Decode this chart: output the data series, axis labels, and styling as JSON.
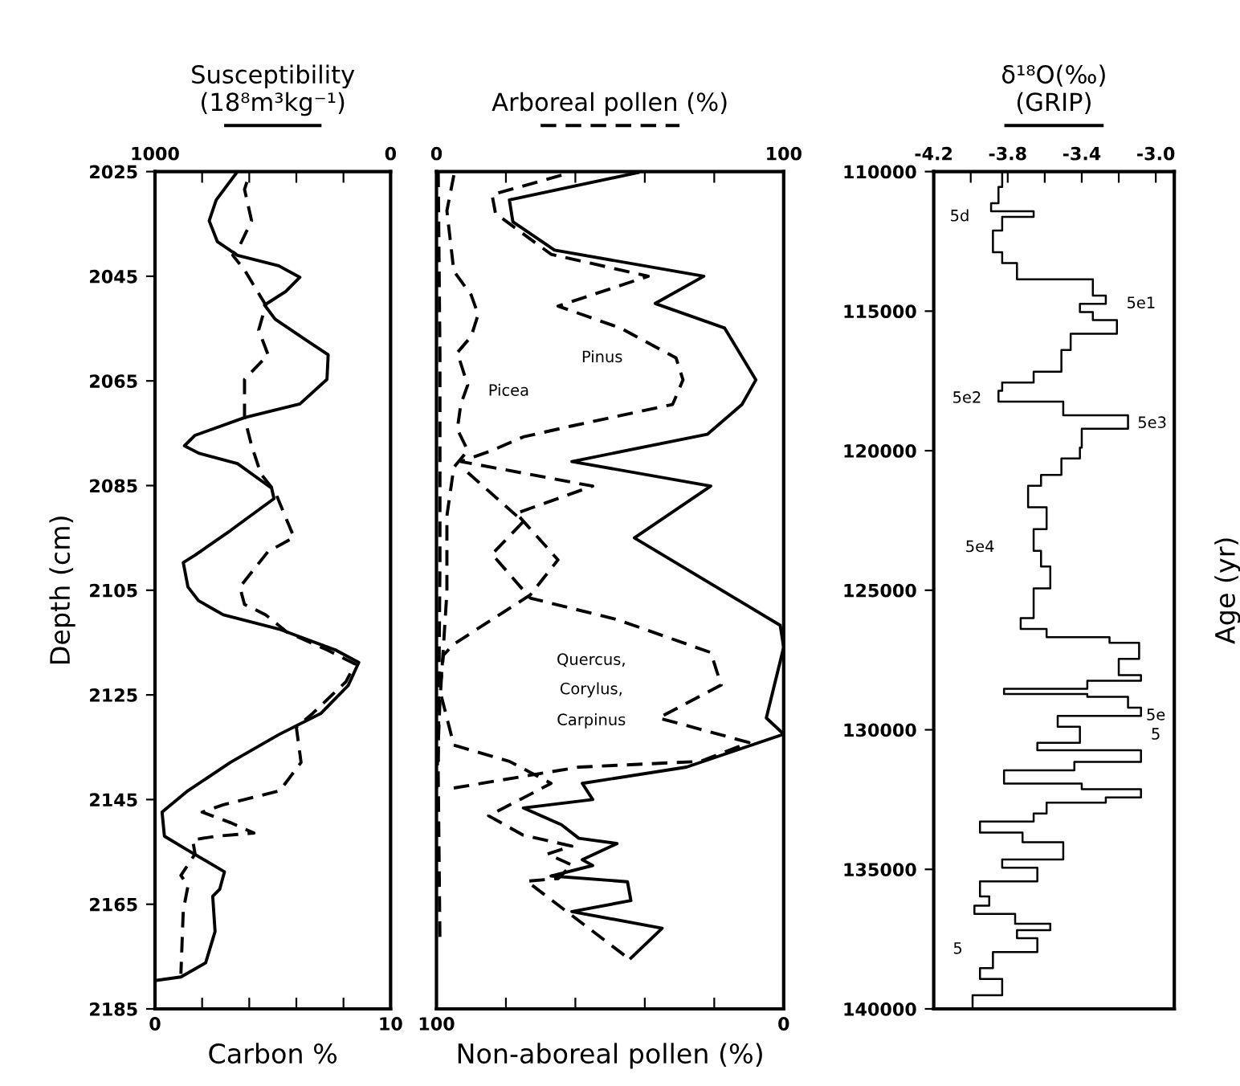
{
  "chart_data": [
    {
      "type": "line",
      "orientation": "horizontal",
      "xlabel": "Carbon %",
      "x2label": "Susceptibility\n(18⁸m³kg⁻¹)",
      "ylabel": "Depth (cm)",
      "xlim": [
        0,
        10
      ],
      "xticks": [
        0,
        {
          "value": 2,
          "label": null
        },
        {
          "value": 4,
          "label": null
        },
        {
          "value": 6,
          "label": null
        },
        {
          "value": 8,
          "label": null
        },
        10
      ],
      "x2lim": [
        1000,
        0
      ],
      "x2ticks": [
        1000,
        {
          "value": 800,
          "label": null
        },
        {
          "value": 600,
          "label": null
        },
        {
          "value": 400,
          "label": null
        },
        {
          "value": 200,
          "label": null
        },
        0
      ],
      "ylim": [
        2185,
        2025
      ],
      "yticks": [
        2025,
        2045,
        2065,
        2085,
        2105,
        2125,
        2145,
        2165,
        2185
      ],
      "series": [
        {
          "color": "#000000",
          "line_style": "solid",
          "axis": "x2",
          "x": [
            2025,
            2030.4,
            2034.4,
            2038.4,
            2041,
            2043,
            2045.2,
            2047.9,
            2050.5,
            2053.2,
            2057.3,
            2060,
            2064.7,
            2069.4,
            2072,
            2075.4,
            2077.4,
            2078.8,
            2080.8,
            2085.5,
            2087.5,
            2093.6,
            2098.3,
            2099.7,
            2104.4,
            2107,
            2109.7,
            2112.4,
            2116.4,
            2118.8,
            2123.2,
            2128.5,
            2132.6,
            2137.9,
            2143.3,
            2147.4,
            2152,
            2154.7,
            2158.8,
            2162.1,
            2163.5,
            2170.2,
            2176.2,
            2178.9,
            2179.6
          ],
          "values": [
            650,
            740,
            770,
            735,
            650,
            475,
            385,
            445,
            535,
            490,
            355,
            265,
            270,
            385,
            620,
            830,
            875,
            815,
            650,
            505,
            495,
            680,
            830,
            880,
            860,
            815,
            710,
            475,
            235,
            135,
            180,
            295,
            475,
            680,
            860,
            970,
            960,
            860,
            705,
            725,
            755,
            745,
            785,
            890,
            1000
          ]
        },
        {
          "color": "#000000",
          "line_style": "dashed",
          "x": [
            2027,
            2028.4,
            2034.4,
            2039.1,
            2041,
            2043.8,
            2050.5,
            2055.3,
            2060,
            2064.7,
            2072,
            2077.4,
            2082.8,
            2086.2,
            2089.5,
            2094.9,
            2097.6,
            2104.4,
            2107.7,
            2109.7,
            2113,
            2116.4,
            2119.1,
            2122.5,
            2128.5,
            2131.2,
            2137.9,
            2143.3,
            2146,
            2147.4,
            2149.4,
            2151.4,
            2152,
            2152.7,
            2155.4,
            2159.5,
            2161.5,
            2166.2,
            2178.3
          ],
          "values": [
            3.9,
            3.8,
            4.1,
            3.6,
            3.3,
            3.8,
            4.7,
            4.4,
            4.8,
            3.8,
            3.8,
            4.1,
            4.5,
            5.1,
            5.4,
            5.9,
            4.8,
            3.6,
            3.8,
            4.7,
            5.6,
            7.3,
            8.5,
            8.1,
            6.7,
            6.0,
            6.2,
            5.3,
            2.9,
            2.0,
            3.2,
            4.2,
            2.6,
            1.6,
            1.7,
            1.1,
            1.4,
            1.2,
            1.1
          ]
        }
      ]
    },
    {
      "type": "line",
      "orientation": "horizontal",
      "xlabel": "Non-aboreal pollen (%)",
      "x2label": "Arboreal pollen (%)",
      "tick_labels": "x",
      "xlim": [
        100,
        0
      ],
      "xticks": [
        100,
        {
          "value": 80,
          "label": null
        },
        {
          "value": 60,
          "label": null
        },
        {
          "value": 40,
          "label": null
        },
        {
          "value": 20,
          "label": null
        },
        0
      ],
      "x2lim": [
        0,
        100
      ],
      "x2ticks": [
        0,
        {
          "value": 20,
          "label": null
        },
        {
          "value": 40,
          "label": null
        },
        {
          "value": 60,
          "label": null
        },
        {
          "value": 80,
          "label": null
        },
        100
      ],
      "ylim": [
        2185,
        2025
      ],
      "annotations": [
        "Pinus",
        "Picea",
        "Quercus,",
        "Corylus,",
        "Carpinus"
      ],
      "series": [
        {
          "color": "#000000",
          "line_style": "solid",
          "x": [
            2025.2,
            2030.4,
            2034.6,
            2040.0,
            2045.0,
            2050.2,
            2054.9,
            2064.8,
            2069.5,
            2075.2,
            2080.4,
            2085.1,
            2095.0,
            2111.7,
            2115.9,
            2129.4,
            2132.5,
            2138.8,
            2141.9,
            2145.0,
            2146.6,
            2149.8,
            2152.4,
            2153.4,
            2156.5,
            2157.6,
            2159.6,
            2160.7,
            2164.3,
            2166.4,
            2169.6,
            2175.3
          ],
          "values": [
            42,
            79,
            78,
            66,
            23,
            37,
            17,
            8,
            12,
            22,
            61,
            21,
            43,
            1,
            0,
            5,
            0,
            28,
            58,
            55,
            75,
            64,
            59,
            48,
            58,
            55,
            67,
            45,
            44,
            61,
            35,
            44
          ]
        },
        {
          "color": "#000000",
          "line_style": "dashed",
          "axis": "x2",
          "x": [
            2025.7,
            2029.4,
            2033.0,
            2040.8,
            2045.0,
            2050.7,
            2054.9,
            2060.6,
            2064.8,
            2069.5,
            2073.6,
            2075.7,
            2078.3,
            2080.4,
            2085.1,
            2090.3,
            2099.2,
            2105.9,
            2115.3,
            2117.4,
            2124.2,
            2134.6
          ],
          "values": [
            36,
            16,
            17,
            33,
            61,
            35,
            53,
            69,
            71,
            68,
            39,
            25,
            16,
            7,
            45,
            23,
            35,
            27,
            5,
            2,
            1,
            5
          ]
        },
        {
          "color": "#000000",
          "line_style": "dashed",
          "axis": "x2",
          "x": [
            2082.5,
            2091.9,
            2098.1,
            2106.5,
            2110.6,
            2116.9,
            2123.1,
            2129.4,
            2134.1,
            2137.7,
            2138.8,
            2142.9
          ],
          "values": [
            9,
            25,
            16,
            27,
            52,
            79,
            82,
            64,
            90,
            76,
            41,
            4
          ]
        },
        {
          "color": "#000000",
          "line_style": "dashed",
          "axis": "x2",
          "x": [
            2134.6,
            2137.7,
            2141.9,
            2144.0,
            2148.1,
            2151.8,
            2153.9,
            2155.4,
            2157.5,
            2160.1,
            2160.6,
            2175.2
          ],
          "values": [
            5,
            21,
            33,
            27,
            15,
            25,
            39,
            32,
            39,
            35,
            26,
            55
          ]
        },
        {
          "color": "#000000",
          "line_style": "dashed",
          "axis": "x2",
          "x": [
            2025.7,
            2032.5,
            2044.0,
            2048.6,
            2052.3,
            2056.5,
            2059.6,
            2065.8,
            2069.5,
            2074.2,
            2078.3,
            2081.5,
            2090.8,
            2105.4,
            2126.2,
            2142.9
          ],
          "values": [
            5,
            3,
            5,
            10,
            12,
            10,
            6,
            9,
            7,
            6,
            9,
            5,
            3,
            3,
            1,
            0
          ]
        },
        {
          "color": "#000000",
          "line_style": "dashed",
          "axis": "x2",
          "x": [
            2025,
            2060,
            2100,
            2140,
            2172
          ],
          "values": [
            0.5,
            1,
            1,
            0.5,
            1
          ]
        }
      ]
    },
    {
      "type": "step",
      "orientation": "horizontal",
      "x2label": "δ¹⁸O(‰)\n(GRIP)",
      "y2label": "Age (yr)",
      "x2lim": [
        -4.2,
        -2.9
      ],
      "x2ticks": [
        -4.2,
        {
          "value": -4.0,
          "label": null
        },
        -3.8,
        {
          "value": -3.6,
          "label": null
        },
        -3.4,
        {
          "value": -3.2,
          "label": null
        },
        {
          "value": -3.0,
          "label": "-3.0"
        }
      ],
      "ylim": [
        140000,
        110000
      ],
      "yticks": [
        110000,
        115000,
        120000,
        125000,
        130000,
        135000,
        140000
      ],
      "annotations": [
        "5d",
        "5e1",
        "5e2",
        "5e3",
        "5e4",
        "5e",
        "5",
        "5"
      ],
      "series": [
        {
          "color": "#000000",
          "line_style": "solid",
          "axis": "x2",
          "x": [
            110000,
            110160,
            110550,
            111130,
            111420,
            111620,
            112110,
            112890,
            113280,
            113860,
            114440,
            114740,
            115030,
            115320,
            115810,
            116390,
            117170,
            117560,
            117850,
            118240,
            118730,
            119210,
            119890,
            120280,
            120870,
            121260,
            122030,
            122810,
            123590,
            124150,
            124930,
            126000,
            126390,
            126680,
            126880,
            127460,
            128040,
            128240,
            128530,
            128720,
            128820,
            129210,
            129500,
            129890,
            130470,
            130730,
            131150,
            131450,
            131930,
            132130,
            132420,
            132610,
            133000,
            133290,
            133680,
            134030,
            134650,
            134940,
            135430,
            135970,
            136300,
            136600,
            136950,
            137180,
            137470,
            137960,
            138540,
            138930,
            139510,
            140000
          ],
          "values": [
            -3.83,
            -3.83,
            -3.85,
            -3.89,
            -3.66,
            -3.83,
            -3.88,
            -3.83,
            -3.75,
            -3.34,
            -3.27,
            -3.41,
            -3.34,
            -3.21,
            -3.46,
            -3.51,
            -3.66,
            -3.83,
            -3.85,
            -3.5,
            -3.15,
            -3.4,
            -3.41,
            -3.51,
            -3.62,
            -3.69,
            -3.59,
            -3.66,
            -3.62,
            -3.57,
            -3.66,
            -3.73,
            -3.59,
            -3.25,
            -3.09,
            -3.2,
            -3.08,
            -3.37,
            -3.82,
            -3.37,
            -3.15,
            -3.08,
            -3.53,
            -3.41,
            -3.64,
            -3.08,
            -3.44,
            -3.82,
            -3.4,
            -3.08,
            -3.27,
            -3.59,
            -3.66,
            -3.95,
            -3.72,
            -3.5,
            -3.83,
            -3.64,
            -3.95,
            -3.9,
            -3.98,
            -3.76,
            -3.57,
            -3.75,
            -3.64,
            -3.88,
            -3.95,
            -3.83,
            -3.99,
            -3.99
          ]
        }
      ]
    }
  ]
}
